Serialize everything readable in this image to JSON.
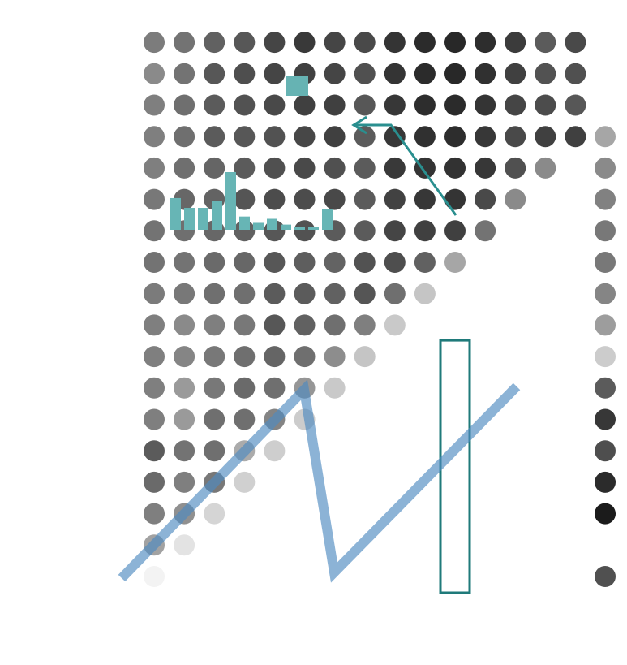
{
  "chart_data": {
    "type": "heatmap",
    "title": "",
    "xlabel": "",
    "ylabel": "",
    "grid": false,
    "legend": "none",
    "matrix": [
      [
        0.05,
        0.4,
        0.55,
        0.64,
        0.7,
        0.55,
        0.55,
        0.55,
        0.55,
        0.57,
        0.6,
        0.6,
        0.58,
        0.55,
        0.55,
        0.55,
        0.5,
        0.56
      ],
      [
        null,
        0.12,
        0.48,
        0.55,
        0.6,
        0.43,
        0.43,
        0.52,
        0.5,
        0.58,
        0.6,
        0.62,
        0.65,
        0.62,
        0.62,
        0.62,
        0.6,
        0.6
      ],
      [
        null,
        null,
        0.18,
        0.58,
        0.62,
        0.62,
        0.58,
        0.58,
        0.55,
        0.62,
        0.64,
        0.65,
        0.67,
        0.66,
        0.7,
        0.7,
        0.72,
        0.68
      ],
      [
        null,
        null,
        null,
        0.2,
        0.36,
        0.62,
        0.64,
        0.62,
        0.58,
        0.62,
        0.65,
        0.68,
        0.73,
        0.7,
        0.72,
        0.74,
        0.76,
        0.72
      ],
      [
        null,
        null,
        null,
        null,
        0.21,
        0.53,
        0.62,
        0.66,
        0.72,
        0.7,
        0.72,
        0.72,
        0.77,
        0.75,
        0.74,
        0.78,
        0.8,
        0.8
      ],
      [
        null,
        null,
        null,
        null,
        null,
        0.22,
        0.45,
        0.62,
        0.68,
        0.7,
        0.69,
        0.74,
        0.77,
        0.78,
        0.79,
        0.82,
        0.82,
        0.85
      ],
      [
        null,
        null,
        null,
        null,
        null,
        null,
        0.23,
        0.49,
        0.62,
        0.68,
        0.67,
        0.7,
        0.78,
        0.75,
        0.82,
        0.82,
        0.8,
        0.8
      ],
      [
        null,
        null,
        null,
        null,
        null,
        null,
        null,
        0.25,
        0.55,
        0.73,
        0.74,
        0.7,
        0.7,
        0.7,
        0.7,
        0.72,
        0.75,
        0.78
      ],
      [
        null,
        null,
        null,
        null,
        null,
        null,
        null,
        null,
        0.23,
        0.62,
        0.76,
        0.8,
        0.81,
        0.85,
        0.86,
        0.86,
        0.87,
        0.87
      ],
      [
        null,
        null,
        null,
        null,
        null,
        null,
        null,
        null,
        null,
        0.25,
        0.68,
        0.82,
        0.86,
        0.87,
        0.89,
        0.9,
        0.91,
        0.91
      ],
      [
        null,
        null,
        null,
        null,
        null,
        null,
        null,
        null,
        null,
        null,
        0.38,
        0.82,
        0.87,
        0.88,
        0.9,
        0.91,
        0.92,
        0.92
      ],
      [
        null,
        null,
        null,
        null,
        null,
        null,
        null,
        null,
        null,
        null,
        null,
        0.6,
        0.78,
        0.86,
        0.86,
        0.87,
        0.89,
        0.9
      ],
      [
        null,
        null,
        null,
        null,
        null,
        null,
        null,
        null,
        null,
        null,
        null,
        null,
        0.5,
        0.75,
        0.78,
        0.8,
        0.82,
        0.84
      ],
      [
        null,
        null,
        null,
        null,
        null,
        null,
        null,
        null,
        null,
        null,
        null,
        null,
        null,
        0.5,
        0.82,
        0.77,
        0.74,
        0.7
      ],
      [
        null,
        null,
        null,
        null,
        null,
        null,
        null,
        null,
        null,
        null,
        null,
        null,
        null,
        null,
        0.82,
        0.72,
        0.75,
        0.78
      ]
    ],
    "side_column": [
      0.25,
      null,
      0.02,
      0.09,
      0.24,
      0.14,
      0.3,
      0.78,
      0.58,
      0.48,
      0.42,
      0.42,
      0.46,
      0.5,
      0.62
    ],
    "highlighted_column_index": 10,
    "line_series": [
      0,
      8,
      14,
      8,
      0
    ],
    "inset_bars": [
      0.55,
      0.38,
      0.38,
      0.5,
      1.0,
      0.23,
      0.12,
      0.19,
      0.09,
      0.05,
      0.05,
      0.36
    ]
  },
  "colors": {
    "accent": "#2a8f8f",
    "inset_bar": "#67b5b5",
    "legend_square": "#66b3b3",
    "highlight_box": "#1f7a7a",
    "line": "#4f8ac0",
    "dot_base": "#161616"
  }
}
